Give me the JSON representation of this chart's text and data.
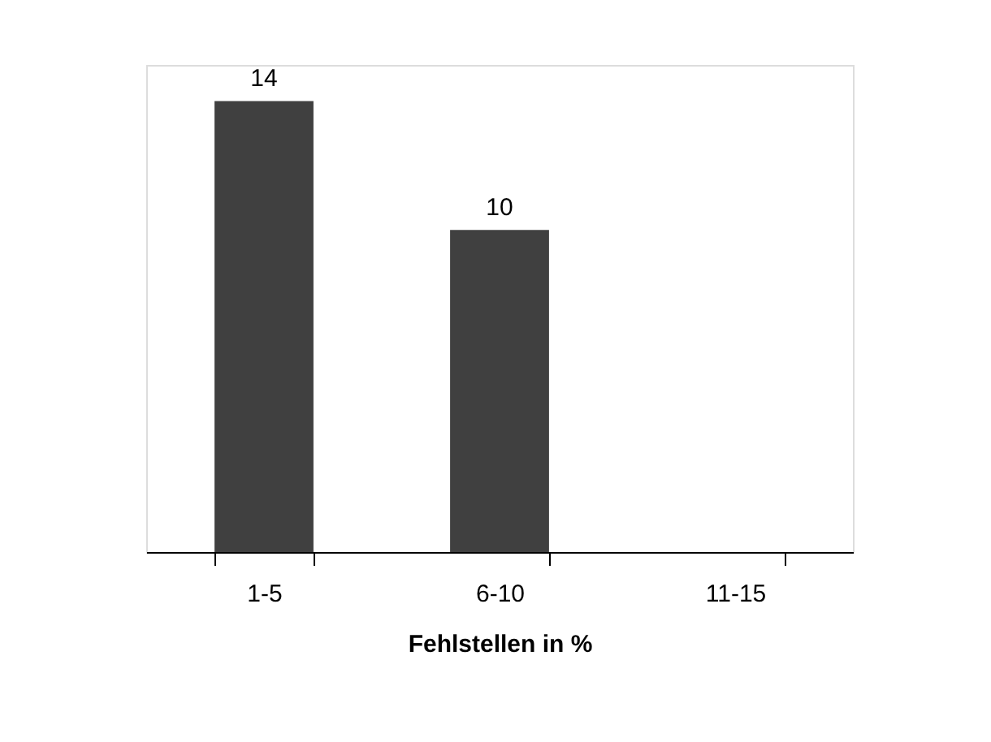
{
  "chart_data": {
    "type": "bar",
    "xlabel": "Fehlstellen in %",
    "categories": [
      "1-5",
      "6-10",
      "11-15"
    ],
    "values": [
      14,
      10,
      0
    ],
    "value_labels": [
      "14",
      "10",
      null
    ],
    "color": "#404040"
  }
}
